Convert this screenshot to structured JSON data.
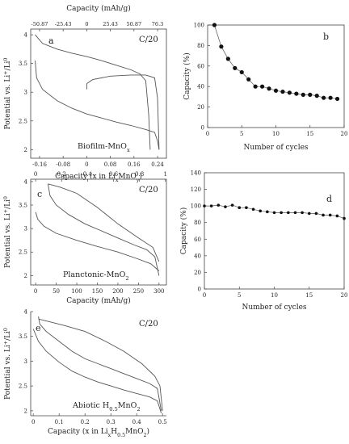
{
  "chart_data": [
    {
      "panel": "a",
      "type": "line",
      "letter": "a",
      "rate": "C/20",
      "sample_label": {
        "main": "Biofilm-MnO",
        "sub": "x"
      },
      "ylabel": {
        "main": "Potential vs. Li",
        "sup1": "+",
        "mid": "/Li",
        "sup2": "0"
      },
      "xlabel": {
        "main": "Capacity (x in Li",
        "sub1": "x",
        "mid": "MnO",
        "sub2": "y",
        "end": ")"
      },
      "top_xlabel": "Capacity (mAh/g)",
      "xlim": [
        -0.19,
        0.27
      ],
      "ylim": [
        1.85,
        4.1
      ],
      "xticks": [
        -0.16,
        -0.08,
        0,
        0.08,
        0.16,
        0.24
      ],
      "xtick_labels": [
        "-0.16",
        "-0.08",
        "0",
        "0.08",
        "0.16",
        "0.24"
      ],
      "yticks": [
        2,
        2.5,
        3,
        3.5,
        4
      ],
      "ytick_labels": [
        "2",
        "2.5",
        "3",
        "3.5",
        "4"
      ],
      "top_ticks": [
        -0.16,
        -0.08,
        0,
        0.08,
        0.16,
        0.24
      ],
      "top_tick_labels": [
        "-50.87",
        "-25.43",
        "0",
        "25.43",
        "50.87",
        "76.3"
      ],
      "series": [
        {
          "x": [
            -0.175,
            -0.15,
            -0.1,
            -0.05,
            0,
            0.05,
            0.1,
            0.15,
            0.18,
            0.2,
            0.21,
            0.215
          ],
          "y": [
            4.0,
            3.85,
            3.75,
            3.68,
            3.62,
            3.55,
            3.47,
            3.39,
            3.32,
            3.2,
            2.6,
            2.0
          ]
        },
        {
          "x": [
            -0.175,
            -0.17,
            -0.15,
            -0.1,
            -0.05,
            0,
            0.05,
            0.1,
            0.15,
            0.2,
            0.23,
            0.24,
            0.245
          ],
          "y": [
            3.55,
            3.25,
            3.05,
            2.85,
            2.72,
            2.62,
            2.55,
            2.48,
            2.42,
            2.35,
            2.3,
            2.15,
            2.0
          ]
        },
        {
          "x": [
            0,
            0.02,
            0.08,
            0.15,
            0.2,
            0.23,
            0.24,
            0.245
          ],
          "y": [
            3.15,
            3.22,
            3.28,
            3.3,
            3.3,
            3.25,
            2.9,
            2.0
          ]
        },
        {
          "x": [
            0,
            0.0
          ],
          "y": [
            3.15,
            3.05
          ]
        }
      ]
    },
    {
      "panel": "b",
      "type": "scatter",
      "letter": "b",
      "ylabel": "Capacity (%)",
      "xlabel": "Number of cycles",
      "xlim": [
        0,
        20
      ],
      "ylim": [
        0,
        100
      ],
      "xticks": [
        0,
        5,
        10,
        15,
        20
      ],
      "xtick_labels": [
        "0",
        "5",
        "10",
        "15",
        "20"
      ],
      "yticks": [
        0,
        20,
        40,
        60,
        80,
        100
      ],
      "ytick_labels": [
        "0",
        "20",
        "40",
        "60",
        "80",
        "100"
      ],
      "x": [
        1,
        2,
        3,
        4,
        5,
        6,
        7,
        8,
        9,
        10,
        11,
        12,
        13,
        14,
        15,
        16,
        17,
        18,
        19
      ],
      "y": [
        100,
        79,
        67,
        58,
        54,
        47,
        40,
        40,
        38,
        36,
        35,
        34,
        33,
        32,
        32,
        31,
        29,
        29,
        28
      ]
    },
    {
      "panel": "c",
      "type": "line",
      "letter": "c",
      "rate": "C/20",
      "sample_label": {
        "main": "Planctonic-MnO",
        "sub": "2"
      },
      "ylabel": {
        "main": "Potential vs. Li",
        "sup1": "+",
        "mid": "/Li",
        "sup2": "0"
      },
      "xlabel": "Capacity (mAh/g)",
      "xlim": [
        -12,
        318
      ],
      "ylim": [
        1.8,
        4.05
      ],
      "xticks": [
        0,
        50,
        100,
        150,
        200,
        250,
        300
      ],
      "xtick_labels": [
        "0",
        "50",
        "100",
        "150",
        "200",
        "250",
        "300"
      ],
      "yticks": [
        2,
        2.5,
        3,
        3.5,
        4
      ],
      "ytick_labels": [
        "2",
        "2.5",
        "3",
        "3.5",
        "4"
      ],
      "top_ticks": [
        0,
        63.1,
        126.2,
        189.3,
        252.4,
        315.5
      ],
      "top_tick_labels": [
        "0",
        "0.2",
        "0.4",
        "0.6",
        "0.8",
        "1"
      ],
      "series": [
        {
          "x": [
            30,
            35,
            50,
            80,
            120,
            160,
            200,
            240,
            270,
            290,
            300
          ],
          "y": [
            3.95,
            3.7,
            3.5,
            3.3,
            3.1,
            2.95,
            2.8,
            2.65,
            2.55,
            2.4,
            2.0
          ]
        },
        {
          "x": [
            0,
            5,
            20,
            50,
            100,
            150,
            200,
            250,
            280,
            300
          ],
          "y": [
            3.35,
            3.2,
            3.05,
            2.9,
            2.75,
            2.62,
            2.5,
            2.35,
            2.25,
            2.1
          ]
        },
        {
          "x": [
            30,
            60,
            100,
            150,
            200,
            250,
            285,
            300
          ],
          "y": [
            3.95,
            3.88,
            3.75,
            3.45,
            3.1,
            2.8,
            2.6,
            2.3
          ]
        }
      ]
    },
    {
      "panel": "d",
      "type": "scatter",
      "letter": "d",
      "ylabel": "Capacity (%)",
      "xlabel": "Number of cycles",
      "xlim": [
        0,
        20
      ],
      "ylim": [
        0,
        140
      ],
      "xticks": [
        0,
        5,
        10,
        15,
        20
      ],
      "xtick_labels": [
        "0",
        "5",
        "10",
        "15",
        "20"
      ],
      "yticks": [
        0,
        20,
        40,
        60,
        80,
        100,
        120,
        140
      ],
      "ytick_labels": [
        "0",
        "20",
        "40",
        "60",
        "80",
        "100",
        "120",
        "140"
      ],
      "x": [
        0,
        1,
        2,
        3,
        4,
        5,
        6,
        7,
        8,
        9,
        10,
        11,
        12,
        13,
        14,
        15,
        16,
        17,
        18,
        19,
        20
      ],
      "y": [
        100,
        100,
        101,
        99,
        101,
        98,
        98,
        96,
        94,
        93,
        92,
        92,
        92,
        92,
        92,
        91,
        91,
        89,
        89,
        88,
        85
      ]
    },
    {
      "panel": "e",
      "type": "line",
      "letter": "e",
      "rate": "C/20",
      "sample_label": {
        "main": "Abiotic H",
        "sub1": "0.5",
        "mid": "MnO",
        "sub2": "2"
      },
      "ylabel": {
        "main": "Potential vs. Li",
        "sup1": "+",
        "mid": "/Li",
        "sup2": "0"
      },
      "xlabel": {
        "main": "Capacity (x in Li",
        "sub1": "x",
        "mid": "H",
        "sub2": "0.5",
        "mid2": "MnO",
        "sub3": "2",
        "end": ")"
      },
      "xlim": [
        -0.01,
        0.515
      ],
      "ylim": [
        1.9,
        4.0
      ],
      "xticks": [
        0,
        0.1,
        0.2,
        0.3,
        0.4,
        0.5
      ],
      "xtick_labels": [
        "0",
        "0.1",
        "0.2",
        "0.3",
        "0.4",
        "0.5"
      ],
      "yticks": [
        2,
        2.5,
        3,
        3.5,
        4
      ],
      "ytick_labels": [
        "2",
        "2.5",
        "3",
        "3.5",
        "4"
      ],
      "series": [
        {
          "x": [
            0.02,
            0.025,
            0.05,
            0.1,
            0.15,
            0.2,
            0.25,
            0.3,
            0.35,
            0.4,
            0.45,
            0.48,
            0.495
          ],
          "y": [
            3.9,
            3.75,
            3.6,
            3.4,
            3.2,
            3.05,
            2.95,
            2.85,
            2.75,
            2.65,
            2.55,
            2.45,
            2.0
          ]
        },
        {
          "x": [
            0.0,
            0.02,
            0.05,
            0.1,
            0.15,
            0.2,
            0.25,
            0.3,
            0.35,
            0.4,
            0.45,
            0.48,
            0.495
          ],
          "y": [
            3.65,
            3.4,
            3.2,
            2.98,
            2.8,
            2.68,
            2.58,
            2.5,
            2.42,
            2.35,
            2.28,
            2.2,
            1.95
          ]
        },
        {
          "x": [
            0.02,
            0.06,
            0.12,
            0.2,
            0.28,
            0.35,
            0.42,
            0.47,
            0.49,
            0.5
          ],
          "y": [
            3.85,
            3.8,
            3.72,
            3.6,
            3.4,
            3.2,
            2.95,
            2.7,
            2.5,
            2.0
          ]
        }
      ]
    }
  ]
}
